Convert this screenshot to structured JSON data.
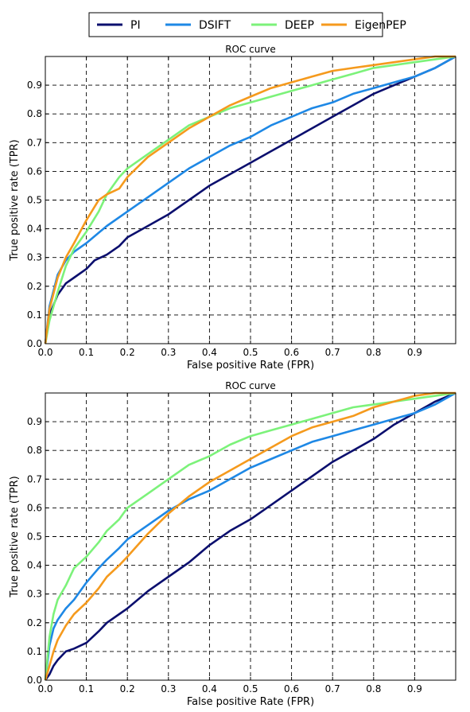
{
  "legend": {
    "placement": "top-center",
    "entries": [
      {
        "name": "PI",
        "color": "#0b0f6e"
      },
      {
        "name": "DSIFT",
        "color": "#1e88e5"
      },
      {
        "name": "DEEP",
        "color": "#7cf27a"
      },
      {
        "name": "EigenPEP",
        "color": "#f59a1d"
      }
    ]
  },
  "chart_data": [
    {
      "type": "line",
      "title": "ROC curve",
      "xlabel": "False positive Rate (FPR)",
      "ylabel": "True positive rate (TPR)",
      "xlim": [
        0,
        1
      ],
      "ylim": [
        0,
        1
      ],
      "grid": true,
      "xticks": [
        "0.0",
        "0.1",
        "0.2",
        "0.3",
        "0.4",
        "0.5",
        "0.6",
        "0.7",
        "0.8",
        "0.9"
      ],
      "yticks": [
        "0.0",
        "0.1",
        "0.2",
        "0.3",
        "0.4",
        "0.5",
        "0.6",
        "0.7",
        "0.8",
        "0.9"
      ],
      "series": [
        {
          "name": "PI",
          "color": "#0b0f6e",
          "x": [
            0,
            0.01,
            0.03,
            0.05,
            0.07,
            0.1,
            0.12,
            0.15,
            0.18,
            0.2,
            0.25,
            0.3,
            0.35,
            0.4,
            0.45,
            0.5,
            0.55,
            0.6,
            0.65,
            0.7,
            0.75,
            0.8,
            0.85,
            0.9,
            0.95,
            1.0
          ],
          "y": [
            0,
            0.1,
            0.17,
            0.21,
            0.23,
            0.26,
            0.29,
            0.31,
            0.34,
            0.37,
            0.41,
            0.45,
            0.5,
            0.55,
            0.59,
            0.63,
            0.67,
            0.71,
            0.75,
            0.79,
            0.83,
            0.87,
            0.9,
            0.93,
            0.96,
            1.0
          ]
        },
        {
          "name": "DSIFT",
          "color": "#1e88e5",
          "x": [
            0,
            0.01,
            0.03,
            0.05,
            0.07,
            0.1,
            0.15,
            0.2,
            0.25,
            0.3,
            0.35,
            0.4,
            0.45,
            0.5,
            0.55,
            0.6,
            0.65,
            0.7,
            0.75,
            0.8,
            0.85,
            0.9,
            0.95,
            1.0
          ],
          "y": [
            0,
            0.13,
            0.24,
            0.29,
            0.32,
            0.35,
            0.41,
            0.46,
            0.51,
            0.56,
            0.61,
            0.65,
            0.69,
            0.72,
            0.76,
            0.79,
            0.82,
            0.84,
            0.87,
            0.89,
            0.91,
            0.93,
            0.96,
            1.0
          ]
        },
        {
          "name": "DEEP",
          "color": "#7cf27a",
          "x": [
            0,
            0.01,
            0.03,
            0.05,
            0.07,
            0.1,
            0.13,
            0.15,
            0.18,
            0.2,
            0.25,
            0.3,
            0.35,
            0.4,
            0.45,
            0.5,
            0.55,
            0.6,
            0.65,
            0.7,
            0.75,
            0.8,
            0.85,
            0.9,
            0.95,
            1.0
          ],
          "y": [
            0,
            0.08,
            0.18,
            0.27,
            0.33,
            0.39,
            0.46,
            0.52,
            0.58,
            0.61,
            0.66,
            0.71,
            0.76,
            0.79,
            0.82,
            0.84,
            0.86,
            0.88,
            0.9,
            0.92,
            0.94,
            0.96,
            0.97,
            0.98,
            0.99,
            1.0
          ]
        },
        {
          "name": "EigenPEP",
          "color": "#f59a1d",
          "x": [
            0,
            0.01,
            0.03,
            0.05,
            0.07,
            0.1,
            0.13,
            0.15,
            0.18,
            0.2,
            0.25,
            0.3,
            0.35,
            0.4,
            0.45,
            0.5,
            0.55,
            0.6,
            0.65,
            0.7,
            0.75,
            0.8,
            0.85,
            0.9,
            0.95,
            1.0
          ],
          "y": [
            0,
            0.12,
            0.23,
            0.3,
            0.35,
            0.43,
            0.5,
            0.52,
            0.54,
            0.58,
            0.65,
            0.7,
            0.75,
            0.79,
            0.83,
            0.86,
            0.89,
            0.91,
            0.93,
            0.95,
            0.96,
            0.97,
            0.98,
            0.99,
            1.0,
            1.0
          ]
        }
      ]
    },
    {
      "type": "line",
      "title": "ROC curve",
      "xlabel": "False positive Rate (FPR)",
      "ylabel": "True positive rate (TPR)",
      "xlim": [
        0,
        1
      ],
      "ylim": [
        0,
        1
      ],
      "grid": true,
      "xticks": [
        "0.0",
        "0.1",
        "0.2",
        "0.3",
        "0.4",
        "0.5",
        "0.6",
        "0.7",
        "0.8",
        "0.9"
      ],
      "yticks": [
        "0.0",
        "0.1",
        "0.2",
        "0.3",
        "0.4",
        "0.5",
        "0.6",
        "0.7",
        "0.8",
        "0.9"
      ],
      "series": [
        {
          "name": "PI",
          "color": "#0b0f6e",
          "x": [
            0,
            0.01,
            0.02,
            0.03,
            0.05,
            0.07,
            0.1,
            0.13,
            0.15,
            0.18,
            0.2,
            0.25,
            0.3,
            0.35,
            0.4,
            0.45,
            0.5,
            0.55,
            0.6,
            0.65,
            0.7,
            0.75,
            0.8,
            0.85,
            0.9,
            0.95,
            1.0
          ],
          "y": [
            0,
            0.02,
            0.05,
            0.07,
            0.1,
            0.11,
            0.13,
            0.17,
            0.2,
            0.23,
            0.25,
            0.31,
            0.36,
            0.41,
            0.47,
            0.52,
            0.56,
            0.61,
            0.66,
            0.71,
            0.76,
            0.8,
            0.84,
            0.89,
            0.93,
            0.97,
            1.0
          ]
        },
        {
          "name": "DSIFT",
          "color": "#1e88e5",
          "x": [
            0,
            0.01,
            0.02,
            0.03,
            0.05,
            0.07,
            0.1,
            0.13,
            0.15,
            0.18,
            0.2,
            0.25,
            0.3,
            0.35,
            0.4,
            0.45,
            0.5,
            0.55,
            0.6,
            0.65,
            0.7,
            0.75,
            0.8,
            0.85,
            0.9,
            0.95,
            1.0
          ],
          "y": [
            0,
            0.12,
            0.18,
            0.21,
            0.25,
            0.28,
            0.34,
            0.39,
            0.42,
            0.46,
            0.49,
            0.54,
            0.59,
            0.63,
            0.66,
            0.7,
            0.74,
            0.77,
            0.8,
            0.83,
            0.85,
            0.87,
            0.89,
            0.91,
            0.93,
            0.96,
            1.0
          ]
        },
        {
          "name": "DEEP",
          "color": "#7cf27a",
          "x": [
            0,
            0.01,
            0.02,
            0.03,
            0.05,
            0.07,
            0.1,
            0.13,
            0.15,
            0.18,
            0.2,
            0.25,
            0.3,
            0.35,
            0.4,
            0.45,
            0.5,
            0.55,
            0.6,
            0.65,
            0.7,
            0.75,
            0.8,
            0.85,
            0.9,
            0.95,
            1.0
          ],
          "y": [
            0,
            0.15,
            0.23,
            0.28,
            0.33,
            0.39,
            0.43,
            0.48,
            0.52,
            0.56,
            0.6,
            0.65,
            0.7,
            0.75,
            0.78,
            0.82,
            0.85,
            0.87,
            0.89,
            0.91,
            0.93,
            0.95,
            0.96,
            0.97,
            0.98,
            0.99,
            1.0
          ]
        },
        {
          "name": "EigenPEP",
          "color": "#f59a1d",
          "x": [
            0,
            0.01,
            0.02,
            0.03,
            0.05,
            0.07,
            0.1,
            0.13,
            0.15,
            0.18,
            0.2,
            0.25,
            0.3,
            0.35,
            0.4,
            0.45,
            0.5,
            0.55,
            0.6,
            0.65,
            0.7,
            0.75,
            0.8,
            0.85,
            0.9,
            0.95,
            1.0
          ],
          "y": [
            0,
            0.05,
            0.1,
            0.14,
            0.19,
            0.23,
            0.27,
            0.32,
            0.36,
            0.4,
            0.43,
            0.51,
            0.58,
            0.64,
            0.69,
            0.73,
            0.77,
            0.81,
            0.85,
            0.88,
            0.9,
            0.92,
            0.95,
            0.97,
            0.99,
            1.0,
            1.0
          ]
        }
      ]
    }
  ]
}
